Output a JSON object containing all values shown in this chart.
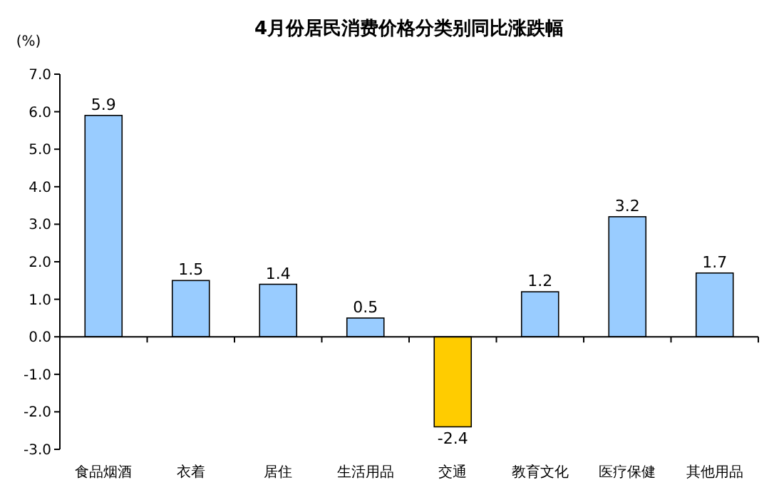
{
  "chart_data": {
    "type": "bar",
    "title": "4月份居民消费价格分类别同比涨跌幅",
    "ylabel": "(%)",
    "categories": [
      "食品烟酒",
      "衣着",
      "居住",
      "生活用品",
      "交通",
      "教育文化",
      "医疗保健",
      "其他用品"
    ],
    "values": [
      5.9,
      1.5,
      1.4,
      0.5,
      -2.4,
      1.2,
      3.2,
      1.7
    ],
    "colors": [
      "#99ccff",
      "#99ccff",
      "#99ccff",
      "#99ccff",
      "#ffcc00",
      "#99ccff",
      "#99ccff",
      "#99ccff"
    ],
    "ylim": [
      -3,
      7
    ],
    "yticks": [
      {
        "value": -3,
        "label": "-3.0"
      },
      {
        "value": -2,
        "label": "-2.0"
      },
      {
        "value": -1,
        "label": "-1.0"
      },
      {
        "value": 0,
        "label": "0.0"
      },
      {
        "value": 1,
        "label": "1.0"
      },
      {
        "value": 2,
        "label": "2.0"
      },
      {
        "value": 3,
        "label": "3.0"
      },
      {
        "value": 4,
        "label": "4.0"
      },
      {
        "value": 5,
        "label": "5.0"
      },
      {
        "value": 6,
        "label": "6.0"
      },
      {
        "value": 7,
        "label": "7.0"
      }
    ],
    "data_labels": true
  }
}
